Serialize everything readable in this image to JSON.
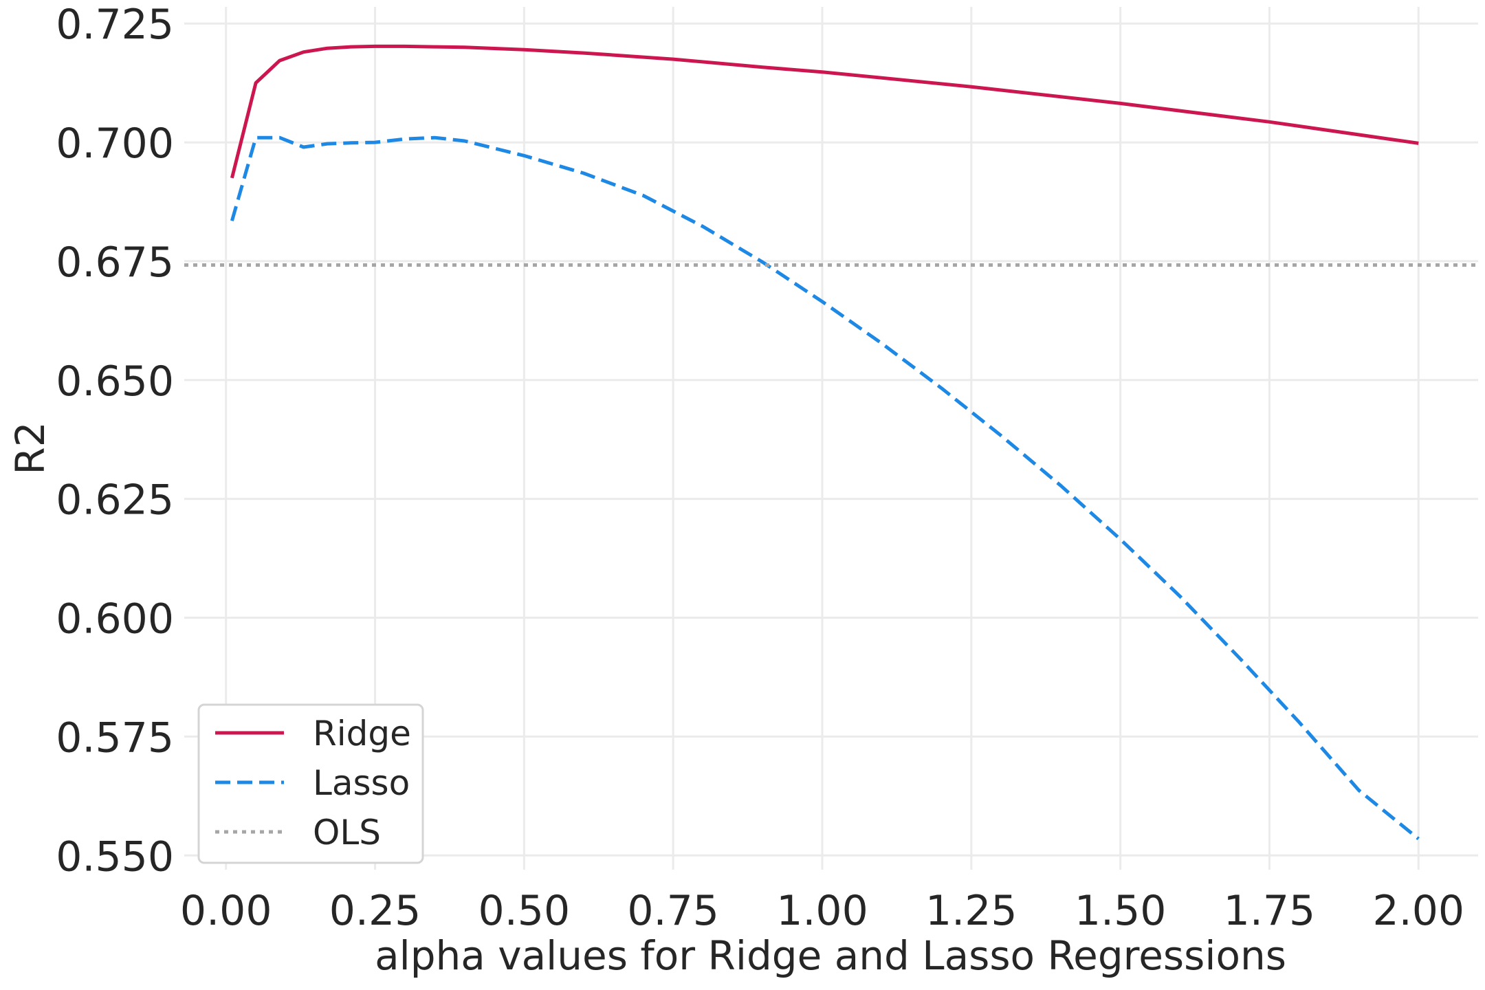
{
  "chart_data": {
    "type": "line",
    "title": "",
    "xlabel": "alpha values for Ridge and Lasso Regressions",
    "ylabel": "R2",
    "xlim": [
      -0.07,
      2.1
    ],
    "ylim": [
      0.547,
      0.7285
    ],
    "xticks": [
      0.0,
      0.25,
      0.5,
      0.75,
      1.0,
      1.25,
      1.5,
      1.75,
      2.0
    ],
    "xtick_labels": [
      "0.00",
      "0.25",
      "0.50",
      "0.75",
      "1.00",
      "1.25",
      "1.50",
      "1.75",
      "2.00"
    ],
    "yticks": [
      0.55,
      0.575,
      0.6,
      0.625,
      0.65,
      0.675,
      0.7,
      0.725
    ],
    "ytick_labels": [
      "0.550",
      "0.575",
      "0.600",
      "0.625",
      "0.650",
      "0.675",
      "0.700",
      "0.725"
    ],
    "grid": true,
    "legend_position": "lower-left",
    "series": [
      {
        "name": "Ridge",
        "style": "solid",
        "color": "#cc1650",
        "x": [
          0.01,
          0.05,
          0.09,
          0.13,
          0.17,
          0.21,
          0.25,
          0.3,
          0.35,
          0.4,
          0.5,
          0.6,
          0.75,
          0.9,
          1.0,
          1.25,
          1.5,
          1.75,
          2.0
        ],
        "y": [
          0.6925,
          0.7125,
          0.7172,
          0.719,
          0.7198,
          0.7201,
          0.7202,
          0.7202,
          0.7201,
          0.72,
          0.7195,
          0.7188,
          0.7175,
          0.7158,
          0.7148,
          0.7117,
          0.7082,
          0.7043,
          0.6998
        ]
      },
      {
        "name": "Lasso",
        "style": "dashed",
        "color": "#1e88e5",
        "x": [
          0.01,
          0.05,
          0.09,
          0.13,
          0.17,
          0.21,
          0.25,
          0.3,
          0.35,
          0.4,
          0.5,
          0.6,
          0.7,
          0.8,
          0.9,
          1.0,
          1.1,
          1.2,
          1.3,
          1.4,
          1.5,
          1.6,
          1.7,
          1.8,
          1.9,
          2.0
        ],
        "y": [
          0.6835,
          0.701,
          0.701,
          0.699,
          0.6997,
          0.6999,
          0.7,
          0.7007,
          0.701,
          0.7003,
          0.6972,
          0.6935,
          0.6888,
          0.6823,
          0.6748,
          0.6665,
          0.6577,
          0.6483,
          0.6383,
          0.6278,
          0.6165,
          0.6045,
          0.5915,
          0.578,
          0.5637,
          0.5535
        ]
      },
      {
        "name": "OLS",
        "style": "dotted",
        "color": "#a6a6a6",
        "y_constant": 0.6742
      }
    ]
  }
}
